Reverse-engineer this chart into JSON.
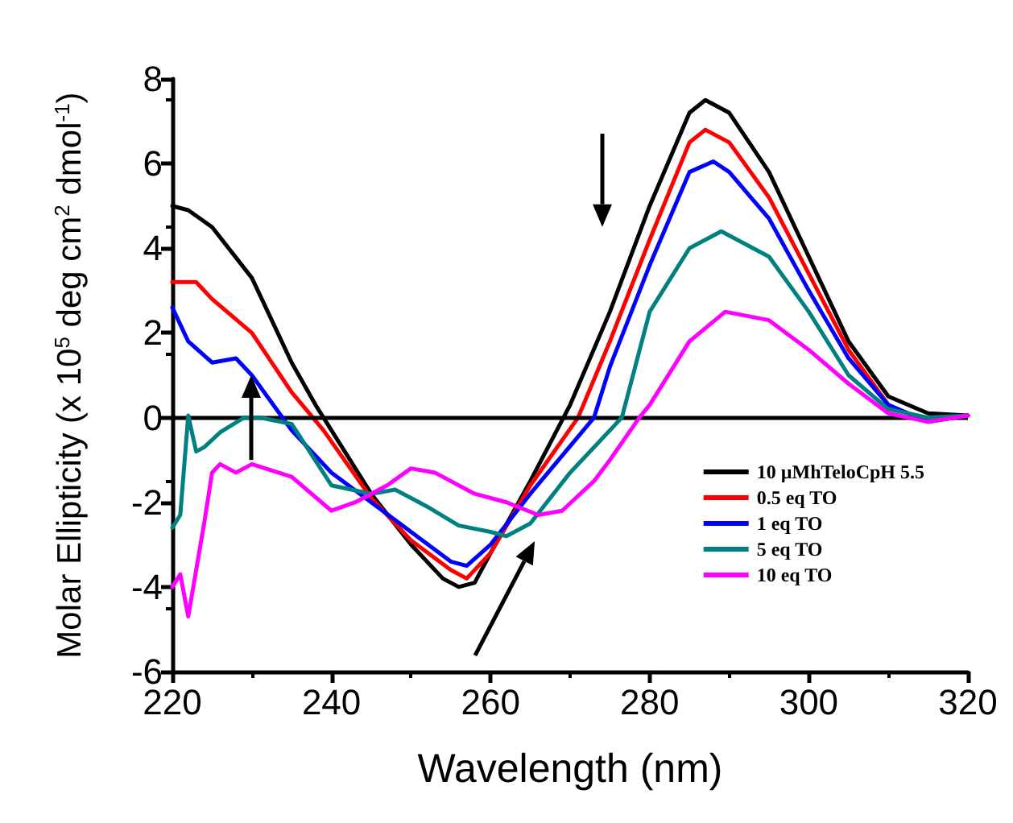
{
  "chart_data": {
    "type": "line",
    "xlabel": "Wavelength (nm)",
    "ylabel": "Molar Ellipticity (x 10$^{5}$ deg cm$^{2}$ dmol$^{-1}$)",
    "xlim": [
      220,
      320
    ],
    "xticks": [
      220,
      240,
      260,
      280,
      300,
      320
    ],
    "ylim": [
      -6,
      8
    ],
    "yticks": [
      -6,
      -4,
      -2,
      0,
      2,
      4,
      6,
      8
    ],
    "grid": false,
    "legend": "right",
    "marker": "none",
    "line_style": "solid",
    "ref_lines": [
      {
        "axis": "y",
        "value": 0,
        "color": "#000000"
      }
    ],
    "series": [
      {
        "name": "10 µMhTeloCpH 5.5",
        "color": "#000000",
        "x": [
          220,
          222,
          225,
          230,
          235,
          238,
          245,
          250,
          254,
          256,
          258,
          260,
          265,
          270,
          275,
          280,
          285,
          287,
          290,
          295,
          300,
          305,
          310,
          315,
          320
        ],
        "values": [
          5.0,
          4.9,
          4.5,
          3.3,
          1.3,
          0.3,
          -1.8,
          -3.0,
          -3.8,
          -4.0,
          -3.9,
          -3.2,
          -1.5,
          0.3,
          2.5,
          5.0,
          7.2,
          7.5,
          7.2,
          5.8,
          3.8,
          1.8,
          0.5,
          0.1,
          0.05
        ]
      },
      {
        "name": "0.5 eq TO",
        "color": "#ff0000",
        "x": [
          220,
          223,
          225,
          230,
          235,
          239,
          245,
          250,
          255,
          257,
          260,
          265,
          271,
          275,
          280,
          285,
          287,
          290,
          295,
          300,
          305,
          310
        ],
        "values": [
          3.2,
          3.2,
          2.8,
          2.0,
          0.6,
          -0.3,
          -1.9,
          -2.9,
          -3.6,
          -3.8,
          -3.2,
          -1.6,
          0,
          1.8,
          4.2,
          6.5,
          6.8,
          6.5,
          5.2,
          3.4,
          1.6,
          0.3
        ]
      },
      {
        "name": "1 eq TO",
        "color": "#0000ff",
        "x": [
          220,
          222,
          225,
          228,
          230,
          235,
          240,
          245,
          250,
          255,
          257,
          260,
          265,
          273,
          275,
          280,
          285,
          288,
          290,
          295,
          300,
          305,
          310,
          315,
          320
        ],
        "values": [
          2.6,
          1.8,
          1.3,
          1.4,
          1.0,
          -0.3,
          -1.3,
          -2.0,
          -2.7,
          -3.4,
          -3.5,
          -3.0,
          -1.8,
          0,
          1.2,
          3.6,
          5.8,
          6.05,
          5.8,
          4.7,
          3.0,
          1.4,
          0.3,
          -0.1,
          0.05
        ]
      },
      {
        "name": "5 eq TO",
        "color": "#008080",
        "x": [
          220,
          221,
          222,
          223,
          224,
          226,
          229,
          231,
          235,
          240,
          245,
          248,
          252,
          256,
          260,
          262,
          265,
          270,
          276.5,
          280,
          285,
          289,
          295,
          300,
          305,
          310,
          315,
          320
        ],
        "values": [
          -2.6,
          -2.3,
          0.05,
          -0.8,
          -0.7,
          -0.35,
          0,
          0,
          -0.15,
          -1.6,
          -1.8,
          -1.7,
          -2.1,
          -2.55,
          -2.7,
          -2.8,
          -2.5,
          -1.3,
          0,
          2.5,
          4.0,
          4.4,
          3.8,
          2.5,
          1.0,
          0.2,
          0,
          0.05
        ]
      },
      {
        "name": "10 eq TO",
        "color": "#ff00ff",
        "x": [
          220,
          221,
          222,
          224,
          225,
          226,
          228,
          230,
          235,
          240,
          243,
          247,
          250,
          253,
          258,
          262,
          266,
          269,
          273,
          275,
          278.7,
          280,
          285,
          289.5,
          295,
          300,
          305,
          310,
          315,
          320
        ],
        "values": [
          -4.0,
          -3.7,
          -4.7,
          -2.5,
          -1.3,
          -1.1,
          -1.3,
          -1.1,
          -1.4,
          -2.2,
          -2.0,
          -1.6,
          -1.2,
          -1.3,
          -1.8,
          -2.0,
          -2.3,
          -2.2,
          -1.5,
          -1.0,
          0,
          0.3,
          1.8,
          2.5,
          2.3,
          1.6,
          0.8,
          0.1,
          -0.1,
          0.05
        ]
      }
    ]
  }
}
